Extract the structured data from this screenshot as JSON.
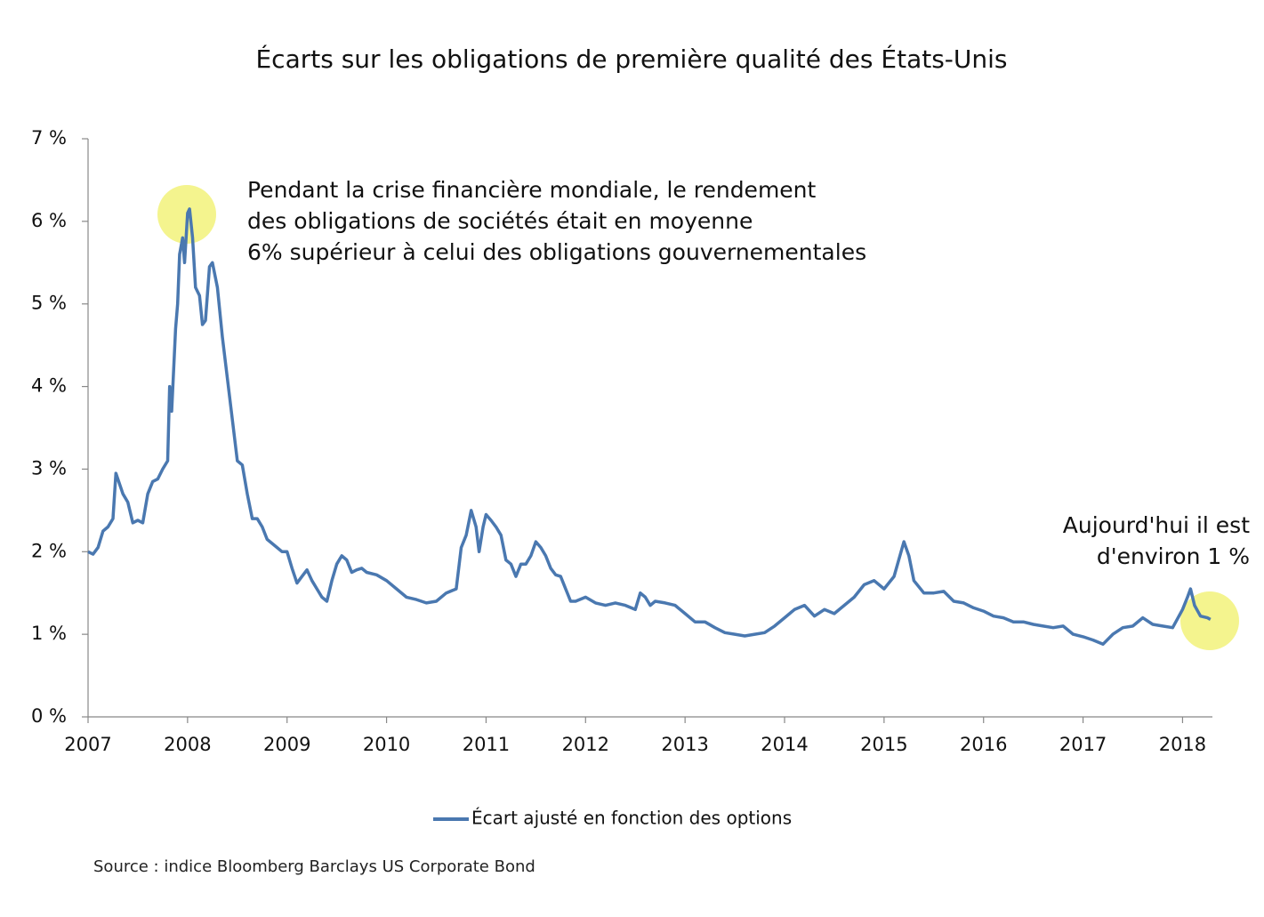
{
  "chart_data": {
    "type": "line",
    "title": "Écarts sur les obligations de première qualité des États-Unis",
    "xlim": [
      2007,
      2018.3
    ],
    "xticks": [
      2007,
      2008,
      2009,
      2010,
      2011,
      2012,
      2013,
      2014,
      2015,
      2016,
      2017,
      2018
    ],
    "ylim": [
      0,
      7
    ],
    "yticks": [
      {
        "value": 0,
        "label": "0 %"
      },
      {
        "value": 1,
        "label": "1 %"
      },
      {
        "value": 2,
        "label": "2 %"
      },
      {
        "value": 3,
        "label": "3 %"
      },
      {
        "value": 4,
        "label": "4 %"
      },
      {
        "value": 5,
        "label": "5 %"
      },
      {
        "value": 6,
        "label": "6 %"
      },
      {
        "value": 7,
        "label": "7 %"
      }
    ],
    "grid": false,
    "x": [
      2007.0,
      2007.05,
      2007.1,
      2007.15,
      2007.2,
      2007.25,
      2007.28,
      2007.35,
      2007.4,
      2007.45,
      2007.5,
      2007.55,
      2007.6,
      2007.65,
      2007.7,
      2007.75,
      2007.8,
      2007.82,
      2007.84,
      2007.88,
      2007.9,
      2007.92,
      2007.95,
      2007.97,
      2008.0,
      2008.02,
      2008.05,
      2008.08,
      2008.12,
      2008.15,
      2008.18,
      2008.22,
      2008.25,
      2008.3,
      2008.35,
      2008.4,
      2008.45,
      2008.5,
      2008.55,
      2008.6,
      2008.65,
      2008.7,
      2008.75,
      2008.8,
      2008.85,
      2008.9,
      2008.95,
      2009.0,
      2009.05,
      2009.1,
      2009.15,
      2009.2,
      2009.25,
      2009.3,
      2009.35,
      2009.4,
      2009.45,
      2009.5,
      2009.55,
      2009.6,
      2009.65,
      2009.7,
      2009.75,
      2009.8,
      2009.9,
      2010.0,
      2010.1,
      2010.2,
      2010.3,
      2010.4,
      2010.5,
      2010.6,
      2010.7,
      2010.75,
      2010.8,
      2010.85,
      2010.9,
      2010.93,
      2010.97,
      2011.0,
      2011.05,
      2011.1,
      2011.15,
      2011.2,
      2011.25,
      2011.3,
      2011.35,
      2011.4,
      2011.45,
      2011.5,
      2011.55,
      2011.6,
      2011.65,
      2011.7,
      2011.75,
      2011.8,
      2011.85,
      2011.9,
      2012.0,
      2012.1,
      2012.2,
      2012.3,
      2012.4,
      2012.5,
      2012.55,
      2012.6,
      2012.65,
      2012.7,
      2012.8,
      2012.9,
      2013.0,
      2013.1,
      2013.2,
      2013.3,
      2013.4,
      2013.5,
      2013.6,
      2013.7,
      2013.8,
      2013.9,
      2014.0,
      2014.1,
      2014.2,
      2014.3,
      2014.4,
      2014.5,
      2014.6,
      2014.7,
      2014.8,
      2014.9,
      2015.0,
      2015.1,
      2015.2,
      2015.25,
      2015.3,
      2015.4,
      2015.5,
      2015.6,
      2015.7,
      2015.8,
      2015.9,
      2016.0,
      2016.1,
      2016.2,
      2016.3,
      2016.4,
      2016.5,
      2016.6,
      2016.7,
      2016.8,
      2016.9,
      2017.0,
      2017.1,
      2017.2,
      2017.3,
      2017.4,
      2017.5,
      2017.6,
      2017.7,
      2017.8,
      2017.9,
      2018.0,
      2018.05,
      2018.08,
      2018.12,
      2018.18,
      2018.25,
      2018.28
    ],
    "series": [
      {
        "name": "Écart ajusté en fonction des options",
        "color": "#4a78b0",
        "values": [
          2.0,
          1.97,
          2.05,
          2.25,
          2.3,
          2.4,
          2.95,
          2.7,
          2.6,
          2.35,
          2.38,
          2.35,
          2.7,
          2.85,
          2.88,
          3.0,
          3.1,
          4.0,
          3.7,
          4.7,
          5.0,
          5.6,
          5.8,
          5.5,
          6.1,
          6.15,
          5.8,
          5.2,
          5.1,
          4.75,
          4.8,
          5.45,
          5.5,
          5.2,
          4.6,
          4.1,
          3.6,
          3.1,
          3.05,
          2.7,
          2.4,
          2.4,
          2.3,
          2.15,
          2.1,
          2.05,
          2.0,
          2.0,
          1.8,
          1.62,
          1.7,
          1.78,
          1.65,
          1.55,
          1.45,
          1.4,
          1.65,
          1.85,
          1.95,
          1.9,
          1.75,
          1.78,
          1.8,
          1.75,
          1.72,
          1.65,
          1.55,
          1.45,
          1.42,
          1.38,
          1.4,
          1.5,
          1.55,
          2.05,
          2.2,
          2.5,
          2.3,
          2.0,
          2.3,
          2.45,
          2.38,
          2.3,
          2.2,
          1.9,
          1.85,
          1.7,
          1.85,
          1.85,
          1.95,
          2.12,
          2.05,
          1.95,
          1.8,
          1.72,
          1.7,
          1.55,
          1.4,
          1.4,
          1.45,
          1.38,
          1.35,
          1.38,
          1.35,
          1.3,
          1.5,
          1.45,
          1.35,
          1.4,
          1.38,
          1.35,
          1.25,
          1.15,
          1.15,
          1.08,
          1.02,
          1.0,
          0.98,
          1.0,
          1.02,
          1.1,
          1.2,
          1.3,
          1.35,
          1.22,
          1.3,
          1.25,
          1.35,
          1.45,
          1.6,
          1.65,
          1.55,
          1.7,
          2.12,
          1.95,
          1.65,
          1.5,
          1.5,
          1.52,
          1.4,
          1.38,
          1.32,
          1.28,
          1.22,
          1.2,
          1.15,
          1.15,
          1.12,
          1.1,
          1.08,
          1.1,
          1.0,
          0.97,
          0.93,
          0.88,
          1.0,
          1.08,
          1.1,
          1.2,
          1.12,
          1.1,
          1.08,
          1.3,
          1.45,
          1.55,
          1.35,
          1.22,
          1.2,
          1.18
        ]
      }
    ],
    "annotations": [
      [
        "Pendant la crise financière mondiale, le rendement",
        "des obligations de sociétés était en moyenne",
        "6% supérieur à celui des obligations gouvernementales"
      ],
      [
        "Aujourd'hui il est",
        "d'environ 1 %"
      ]
    ],
    "source": "Source : indice Bloomberg Barclays US Corporate Bond"
  }
}
